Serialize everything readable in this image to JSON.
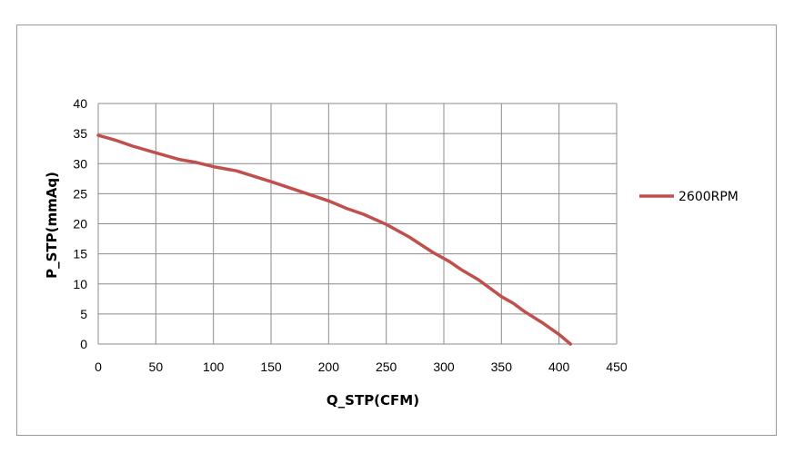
{
  "chart_data": {
    "type": "line",
    "title": "",
    "xlabel": "Q_STP(CFM)",
    "ylabel": "P_STP(mmAq)",
    "xlim": [
      0,
      450
    ],
    "ylim": [
      0,
      40
    ],
    "x_ticks": [
      0,
      50,
      100,
      150,
      200,
      250,
      300,
      350,
      400,
      450
    ],
    "y_ticks": [
      0,
      5,
      10,
      15,
      20,
      25,
      30,
      35,
      40
    ],
    "grid": true,
    "legend_position": "right",
    "series": [
      {
        "name": "2600RPM",
        "color": "#c0504d",
        "x": [
          0,
          15,
          30,
          50,
          70,
          85,
          100,
          120,
          150,
          175,
          200,
          215,
          230,
          250,
          270,
          290,
          305,
          315,
          330,
          350,
          360,
          370,
          385,
          400,
          410
        ],
        "y": [
          34.7,
          33.9,
          32.9,
          31.8,
          30.7,
          30.2,
          29.5,
          28.8,
          27.0,
          25.4,
          23.8,
          22.6,
          21.6,
          19.9,
          17.8,
          15.3,
          13.7,
          12.4,
          10.7,
          7.9,
          6.8,
          5.4,
          3.6,
          1.6,
          0
        ]
      }
    ]
  }
}
